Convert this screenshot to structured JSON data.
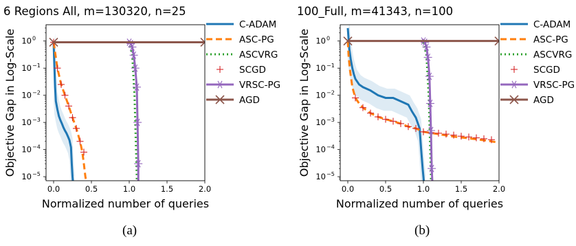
{
  "chart_data": [
    {
      "type": "line",
      "title": "6 Regions All,  m=130320, n=25",
      "xlabel": "Normalized number of queries",
      "ylabel": "Objective Gap in Log-Scale",
      "xlim": [
        -0.1,
        2.0
      ],
      "ylim_log10": [
        -5.15,
        0.6
      ],
      "y_scale": "log",
      "x_ticks": [
        0.0,
        0.5,
        1.0,
        1.5,
        2.0
      ],
      "x_tick_labels": [
        "0.0",
        "0.5",
        "1.0",
        "1.5",
        "2.0"
      ],
      "y_ticks_log10": [
        0,
        -1,
        -2,
        -3,
        -4,
        -5
      ],
      "y_tick_labels": [
        "10",
        "10",
        "10",
        "10",
        "10",
        "10"
      ],
      "y_tick_exponents": [
        "0",
        "−1",
        "−2",
        "−3",
        "−4",
        "−5"
      ],
      "legend_position": "outside-right",
      "caption": "(a)",
      "series": [
        {
          "name": "C-ADAM",
          "color": "#1f77b4",
          "style": "solid",
          "x": [
            0,
            0.01,
            0.02,
            0.03,
            0.05,
            0.07,
            0.09,
            0.11,
            0.13,
            0.15,
            0.17,
            0.19,
            0.21,
            0.23,
            0.24,
            0.25,
            0.26
          ],
          "y": [
            0.9,
            0.12,
            0.02,
            0.006,
            0.003,
            0.0017,
            0.0012,
            0.0009,
            0.00065,
            0.0005,
            0.0004,
            0.0003,
            0.00022,
            0.00012,
            3e-05,
            1e-05,
            5e-06
          ]
        },
        {
          "name": "ASC-PG",
          "color": "#ff7f0e",
          "style": "dashed",
          "x": [
            0,
            0.05,
            0.1,
            0.15,
            0.2,
            0.25,
            0.3,
            0.35,
            0.38,
            0.4,
            0.42,
            0.44
          ],
          "y": [
            0.9,
            0.1,
            0.025,
            0.01,
            0.004,
            0.0015,
            0.0006,
            0.0002,
            8e-05,
            3e-05,
            1e-05,
            5e-06
          ]
        },
        {
          "name": "ASCVRG",
          "color": "#2ca02c",
          "style": "dotted",
          "x": [
            1.0,
            1.04,
            1.07,
            1.09,
            1.1,
            1.1
          ],
          "y": [
            0.9,
            0.3,
            0.01,
            0.0001,
            1e-05,
            5e-06
          ]
        },
        {
          "name": "SCGD",
          "color": "#d62728",
          "style": "marker-plus",
          "x": [
            0.0,
            0.05,
            0.1,
            0.15,
            0.2,
            0.25,
            0.3,
            0.35,
            0.4
          ],
          "y": [
            0.9,
            0.1,
            0.025,
            0.01,
            0.004,
            0.0015,
            0.0006,
            0.0002,
            8e-05
          ]
        },
        {
          "name": "VRSC-PG",
          "color": "#9467bd",
          "style": "solid-star",
          "x": [
            1.0,
            1.02,
            1.04,
            1.06,
            1.08,
            1.1,
            1.11,
            1.12,
            1.12
          ],
          "y": [
            0.9,
            0.8,
            0.6,
            0.3,
            0.1,
            0.02,
            0.001,
            3e-05,
            5e-06
          ]
        },
        {
          "name": "AGD",
          "color": "#8c564b",
          "style": "solid-x",
          "x": [
            0,
            2.0
          ],
          "y": [
            0.9,
            0.9
          ]
        }
      ]
    },
    {
      "type": "line",
      "title": "100_Full,  m=41343, n=100",
      "xlabel": "Normalized number of queries",
      "ylabel": "Objective Gap in Log-Scale",
      "xlim": [
        -0.1,
        2.0
      ],
      "ylim_log10": [
        -5.15,
        0.6
      ],
      "y_scale": "log",
      "x_ticks": [
        0.0,
        0.5,
        1.0,
        1.5,
        2.0
      ],
      "x_tick_labels": [
        "0.0",
        "0.5",
        "1.0",
        "1.5",
        "2.0"
      ],
      "y_ticks_log10": [
        0,
        -1,
        -2,
        -3,
        -4,
        -5
      ],
      "y_tick_labels": [
        "10",
        "10",
        "10",
        "10",
        "10",
        "10"
      ],
      "y_tick_exponents": [
        "0",
        "−1",
        "−2",
        "−3",
        "−4",
        "−5"
      ],
      "legend_position": "outside-right",
      "caption": "(b)",
      "series": [
        {
          "name": "C-ADAM",
          "color": "#1f77b4",
          "style": "solid",
          "x": [
            0,
            0.02,
            0.04,
            0.06,
            0.08,
            0.1,
            0.15,
            0.2,
            0.3,
            0.4,
            0.5,
            0.6,
            0.7,
            0.8,
            0.85,
            0.9,
            0.95,
            0.97,
            0.99,
            1.01
          ],
          "y": [
            3.0,
            0.5,
            0.2,
            0.1,
            0.06,
            0.04,
            0.025,
            0.02,
            0.015,
            0.01,
            0.008,
            0.008,
            0.006,
            0.0045,
            0.0025,
            0.0015,
            0.0006,
            0.0001,
            2e-05,
            5e-06
          ]
        },
        {
          "name": "ASC-PG",
          "color": "#ff7f0e",
          "style": "dashed",
          "x": [
            0,
            0.01,
            0.03,
            0.06,
            0.1,
            0.15,
            0.2,
            0.3,
            0.4,
            0.5,
            0.6,
            0.7,
            0.8,
            0.9,
            1.0,
            1.2,
            1.4,
            1.6,
            1.8,
            2.0
          ],
          "y": [
            1.0,
            0.3,
            0.08,
            0.02,
            0.008,
            0.005,
            0.0035,
            0.0022,
            0.0016,
            0.0013,
            0.0011,
            0.0009,
            0.0007,
            0.0006,
            0.00045,
            0.00037,
            0.0003,
            0.00026,
            0.00022,
            0.00018
          ]
        },
        {
          "name": "ASCVRG",
          "color": "#2ca02c",
          "style": "dotted",
          "x": [
            1.0,
            1.04,
            1.07,
            1.09,
            1.1,
            1.1
          ],
          "y": [
            0.9,
            0.3,
            0.01,
            0.0001,
            1e-05,
            5e-06
          ]
        },
        {
          "name": "SCGD",
          "color": "#d62728",
          "style": "marker-plus",
          "x": [
            0.1,
            0.2,
            0.3,
            0.4,
            0.5,
            0.6,
            0.7,
            0.8,
            0.9,
            1.0,
            1.1,
            1.2,
            1.3,
            1.4,
            1.5,
            1.6,
            1.7,
            1.8,
            1.9
          ],
          "y": [
            0.008,
            0.0035,
            0.0022,
            0.0016,
            0.0013,
            0.0011,
            0.0009,
            0.0007,
            0.0006,
            0.00045,
            0.00042,
            0.0004,
            0.00037,
            0.00034,
            0.00031,
            0.00029,
            0.00027,
            0.00025,
            0.00023
          ]
        },
        {
          "name": "VRSC-PG",
          "color": "#9467bd",
          "style": "solid-star",
          "x": [
            1.0,
            1.02,
            1.04,
            1.06,
            1.08,
            1.09,
            1.1,
            1.11,
            1.12
          ],
          "y": [
            1.0,
            0.9,
            0.6,
            0.25,
            0.05,
            0.005,
            0.0005,
            2e-05,
            5e-06
          ]
        },
        {
          "name": "AGD",
          "color": "#8c564b",
          "style": "solid-x",
          "x": [
            0,
            2.0
          ],
          "y": [
            1.0,
            1.0
          ]
        }
      ]
    }
  ]
}
